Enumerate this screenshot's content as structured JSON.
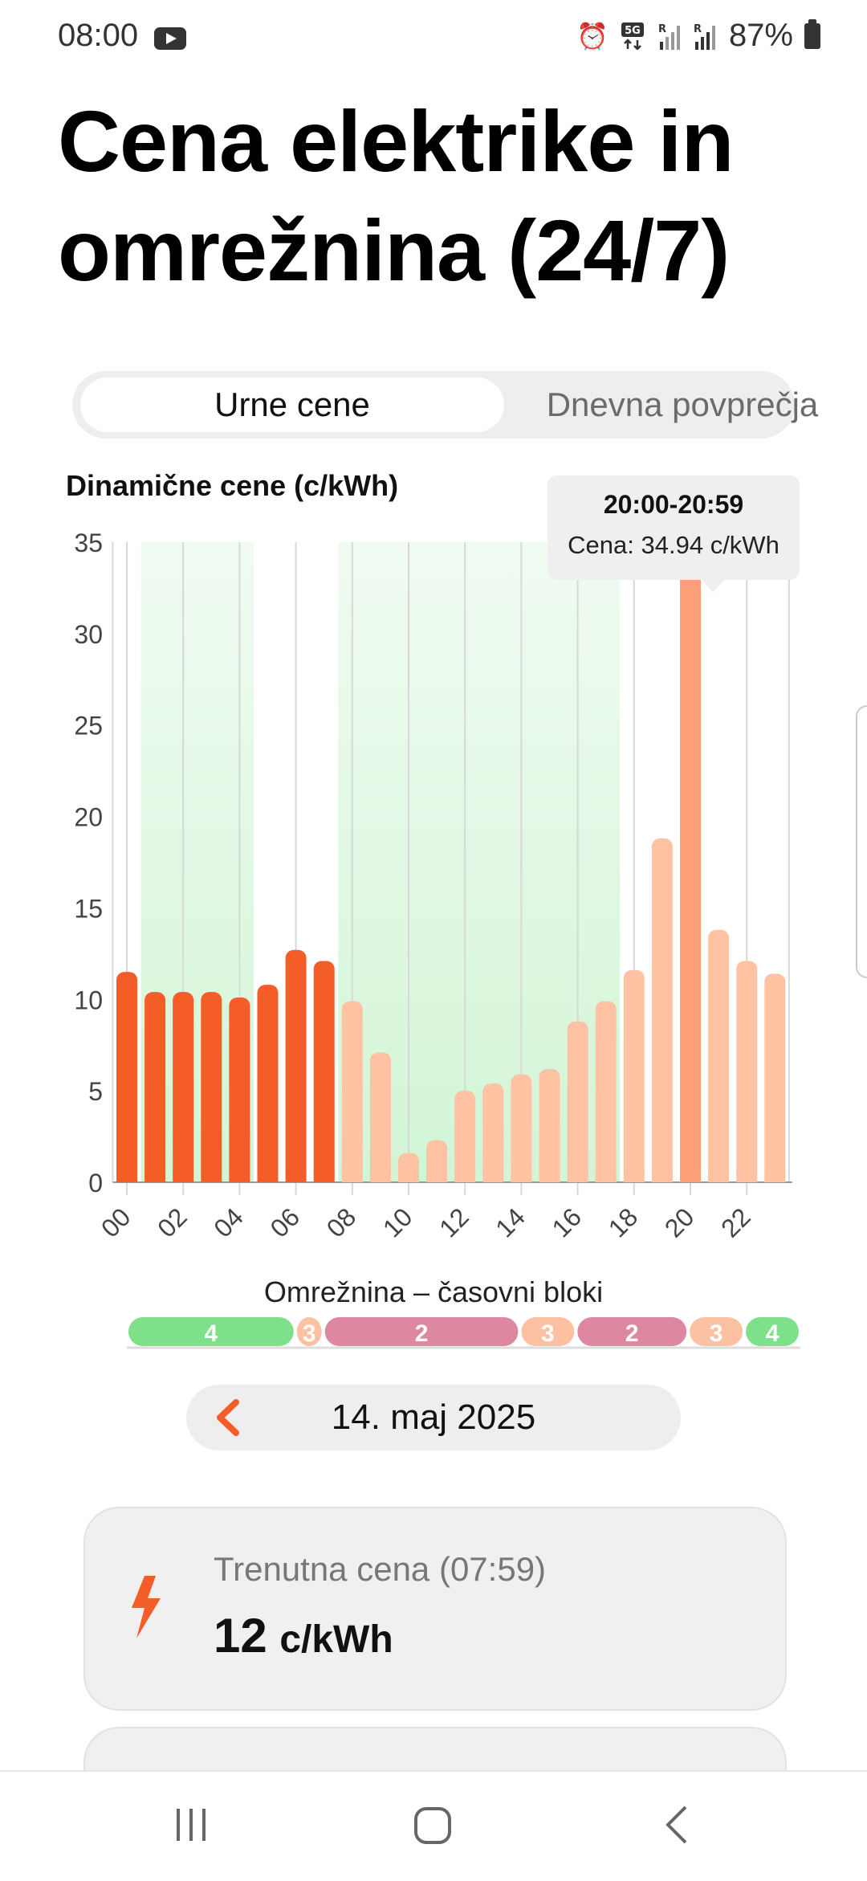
{
  "status_bar": {
    "time": "08:00",
    "battery": "87%",
    "icons": [
      "youtube-icon",
      "alarm-icon",
      "5g-icon",
      "signal-icon",
      "signal-icon",
      "battery-icon"
    ]
  },
  "title": "Cena elektrike in omrežnina (24/7)",
  "tabs": [
    {
      "label": "Urne cene",
      "active": true
    },
    {
      "label": "Dnevna povprečja",
      "active": false
    }
  ],
  "tooltip": {
    "time": "20:00-20:59",
    "text": "Cena: 34.94 c/kWh"
  },
  "colors": {
    "past_bar": "#f45d27",
    "future_bar": "#ffc2a3",
    "selected_bar": "#fca07a",
    "green_zone": "#d2f5d6",
    "block_4": "#7ee08a",
    "block_3": "#fcc1a3",
    "block_2": "#dd88a0"
  },
  "chart_data": {
    "type": "bar",
    "title": "Dinamične cene (c/kWh)",
    "xlabel": "",
    "ylabel": "",
    "ylim": [
      0,
      35
    ],
    "y_ticks": [
      0,
      5,
      10,
      15,
      20,
      25,
      30,
      35
    ],
    "x_tick_labels": [
      "00",
      "02",
      "04",
      "06",
      "08",
      "10",
      "12",
      "14",
      "16",
      "18",
      "20",
      "22"
    ],
    "categories": [
      "00",
      "01",
      "02",
      "03",
      "04",
      "05",
      "06",
      "07",
      "08",
      "09",
      "10",
      "11",
      "12",
      "13",
      "14",
      "15",
      "16",
      "17",
      "18",
      "19",
      "20",
      "21",
      "22",
      "23"
    ],
    "values": [
      11.5,
      10.4,
      10.4,
      10.4,
      10.1,
      10.8,
      12.7,
      12.1,
      9.9,
      7.1,
      1.6,
      2.3,
      5.0,
      5.4,
      5.9,
      6.2,
      8.8,
      9.9,
      11.6,
      18.8,
      34.94,
      13.8,
      12.1,
      11.4
    ],
    "current_hour_index": 7,
    "selected_index": 20,
    "green_zones": [
      [
        1,
        4
      ],
      [
        8,
        17
      ]
    ],
    "grid": true
  },
  "tariff_blocks": {
    "title": "Omrežnina – časovni bloki",
    "segments": [
      {
        "label": "4",
        "start": 0,
        "end": 6,
        "type": "block_4"
      },
      {
        "label": "3",
        "start": 6,
        "end": 7,
        "type": "block_3"
      },
      {
        "label": "2",
        "start": 7,
        "end": 14,
        "type": "block_2"
      },
      {
        "label": "3",
        "start": 14,
        "end": 16,
        "type": "block_3"
      },
      {
        "label": "2",
        "start": 16,
        "end": 20,
        "type": "block_2"
      },
      {
        "label": "3",
        "start": 20,
        "end": 22,
        "type": "block_3"
      },
      {
        "label": "4",
        "start": 22,
        "end": 24,
        "type": "block_4"
      }
    ]
  },
  "date": {
    "label": "14. maj 2025"
  },
  "current_price": {
    "label": "Trenutna cena (07:59)",
    "value": "12",
    "unit": "c/kWh"
  },
  "nav": {
    "icons": [
      "recents-icon",
      "home-icon",
      "back-icon"
    ]
  }
}
